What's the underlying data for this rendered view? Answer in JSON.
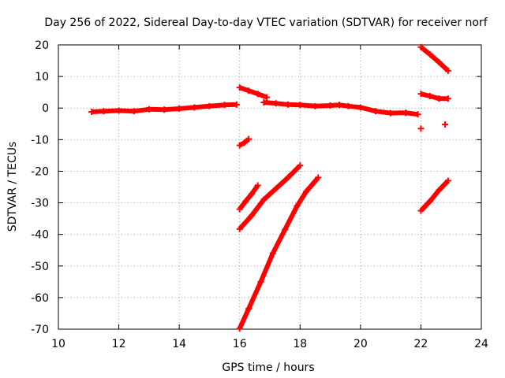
{
  "chart_data": {
    "type": "scatter",
    "title": "Day 256 of 2022, Sidereal Day-to-day VTEC variation (SDTVAR) for receiver norf",
    "xlabel": "GPS time / hours",
    "ylabel": "SDTVAR / TECUs",
    "xlim": [
      10,
      24
    ],
    "ylim": [
      -70,
      20
    ],
    "xticks": [
      10,
      12,
      14,
      16,
      18,
      20,
      22,
      24
    ],
    "yticks": [
      -70,
      -60,
      -50,
      -40,
      -30,
      -20,
      -10,
      0,
      10,
      20
    ],
    "grid": true,
    "color": "#ff0000",
    "series": [
      {
        "name": "arc-main-early",
        "points": [
          [
            11.1,
            -1.2
          ],
          [
            11.5,
            -1.0
          ],
          [
            12.0,
            -0.8
          ],
          [
            12.5,
            -1.0
          ],
          [
            13.0,
            -0.4
          ],
          [
            13.5,
            -0.5
          ],
          [
            14.0,
            -0.2
          ],
          [
            14.5,
            0.2
          ],
          [
            15.0,
            0.6
          ],
          [
            15.5,
            1.0
          ],
          [
            15.9,
            1.1
          ]
        ]
      },
      {
        "name": "arc-main-late",
        "points": [
          [
            16.8,
            1.8
          ],
          [
            17.2,
            1.5
          ],
          [
            17.6,
            1.1
          ],
          [
            18.0,
            1.0
          ],
          [
            18.5,
            0.6
          ],
          [
            19.0,
            0.8
          ],
          [
            19.3,
            1.0
          ],
          [
            19.6,
            0.6
          ],
          [
            20.0,
            0.2
          ],
          [
            20.5,
            -1.0
          ],
          [
            21.0,
            -1.6
          ],
          [
            21.5,
            -1.5
          ],
          [
            21.9,
            -2.0
          ]
        ]
      },
      {
        "name": "arc-16-upper",
        "points": [
          [
            16.0,
            6.5
          ],
          [
            16.3,
            5.5
          ],
          [
            16.6,
            4.5
          ],
          [
            16.9,
            3.4
          ]
        ]
      },
      {
        "name": "arc-16-short",
        "points": [
          [
            16.0,
            -11.8
          ],
          [
            16.15,
            -11.0
          ],
          [
            16.3,
            -9.8
          ]
        ]
      },
      {
        "name": "arc-16-a",
        "points": [
          [
            16.0,
            -32.0
          ],
          [
            16.2,
            -29.5
          ],
          [
            16.4,
            -27.2
          ],
          [
            16.6,
            -24.5
          ]
        ]
      },
      {
        "name": "arc-16-b",
        "points": [
          [
            16.0,
            -38.3
          ],
          [
            16.4,
            -34.0
          ],
          [
            16.8,
            -29.0
          ],
          [
            17.2,
            -25.5
          ],
          [
            17.6,
            -22.0
          ],
          [
            18.0,
            -18.2
          ]
        ]
      },
      {
        "name": "arc-16-c",
        "points": [
          [
            16.0,
            -69.8
          ],
          [
            16.3,
            -63.5
          ],
          [
            16.7,
            -55.0
          ],
          [
            17.1,
            -46.0
          ],
          [
            17.5,
            -38.5
          ],
          [
            17.9,
            -31.0
          ],
          [
            18.2,
            -26.5
          ],
          [
            18.6,
            -22.0
          ]
        ]
      },
      {
        "name": "arc-22-upper",
        "points": [
          [
            22.0,
            19.3
          ],
          [
            22.3,
            17.0
          ],
          [
            22.6,
            14.5
          ],
          [
            22.9,
            11.8
          ]
        ]
      },
      {
        "name": "arc-22-mid",
        "points": [
          [
            22.0,
            4.5
          ],
          [
            22.3,
            3.8
          ],
          [
            22.6,
            3.0
          ],
          [
            22.9,
            3.0
          ]
        ]
      },
      {
        "name": "arc-22-lower",
        "points": [
          [
            22.0,
            -32.5
          ],
          [
            22.3,
            -29.5
          ],
          [
            22.6,
            -26.0
          ],
          [
            22.9,
            -23.0
          ]
        ]
      },
      {
        "name": "isolated-22.0",
        "points": [
          [
            22.0,
            -6.5
          ]
        ]
      },
      {
        "name": "isolated-22.8",
        "points": [
          [
            22.8,
            -5.2
          ]
        ]
      }
    ]
  }
}
